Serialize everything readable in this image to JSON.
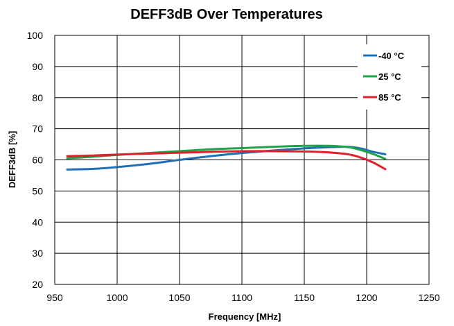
{
  "chart_data": {
    "type": "line",
    "title": "DEFF3dB Over Temperatures",
    "xlabel": "Frequency [MHz]",
    "ylabel": "DEFF3dB [%]",
    "xlim": [
      950,
      1250
    ],
    "ylim": [
      20,
      100
    ],
    "xticks": [
      "950",
      "1000",
      "1050",
      "1100",
      "1150",
      "1200",
      "1250"
    ],
    "yticks": [
      "20",
      "30",
      "40",
      "50",
      "60",
      "70",
      "80",
      "90",
      "100"
    ],
    "grid": true,
    "legend_position": "top-right",
    "series": [
      {
        "name": "-40 °C",
        "color": "#1F6FB4",
        "x": [
          960,
          980,
          1000,
          1025,
          1050,
          1075,
          1100,
          1125,
          1150,
          1170,
          1185,
          1195,
          1205,
          1215
        ],
        "y": [
          56.9,
          57.1,
          57.7,
          58.7,
          60.0,
          61.2,
          62.2,
          63.0,
          63.7,
          64.1,
          64.2,
          63.7,
          62.6,
          61.8
        ]
      },
      {
        "name": "25 °C",
        "color": "#1FA34A",
        "x": [
          960,
          980,
          1000,
          1025,
          1050,
          1075,
          1100,
          1125,
          1150,
          1170,
          1185,
          1195,
          1205,
          1215
        ],
        "y": [
          60.5,
          61.0,
          61.6,
          62.2,
          62.8,
          63.4,
          63.8,
          64.2,
          64.5,
          64.5,
          64.1,
          63.2,
          61.9,
          60.3
        ]
      },
      {
        "name": "85 °C",
        "color": "#E0202A",
        "x": [
          960,
          980,
          1000,
          1025,
          1050,
          1075,
          1100,
          1125,
          1150,
          1170,
          1185,
          1195,
          1205,
          1215
        ],
        "y": [
          61.2,
          61.4,
          61.7,
          62.0,
          62.3,
          62.6,
          62.8,
          62.8,
          62.7,
          62.4,
          61.8,
          60.8,
          59.2,
          57.0
        ]
      }
    ]
  }
}
